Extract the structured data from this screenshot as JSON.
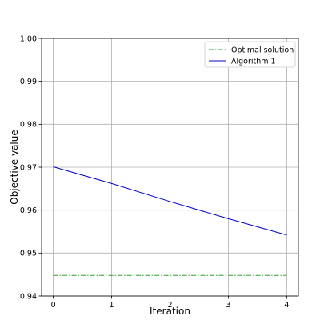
{
  "chart_data": {
    "type": "line",
    "xlabel": "Iteration",
    "ylabel": "Objective value",
    "xlim": [
      -0.2,
      4.2
    ],
    "ylim": [
      0.94,
      1.0
    ],
    "xticks": [
      0,
      1,
      2,
      3,
      4
    ],
    "yticks": [
      0.94,
      0.95,
      0.96,
      0.97,
      0.98,
      0.99,
      1.0
    ],
    "xtick_labels": [
      "0",
      "1",
      "2",
      "3",
      "4"
    ],
    "ytick_labels": [
      "0.94",
      "0.95",
      "0.96",
      "0.97",
      "0.98",
      "0.99",
      "1.00"
    ],
    "grid": true,
    "legend_position": "top-right",
    "series": [
      {
        "name": "Optimal solution",
        "color": "#2ca02c",
        "style": "dashdot",
        "x": [
          0,
          1,
          2,
          3,
          4
        ],
        "y": [
          0.9448,
          0.9448,
          0.9448,
          0.9448,
          0.9448
        ]
      },
      {
        "name": "Algorithm 1",
        "color": "#0000cc",
        "style": "solid",
        "x": [
          0,
          1,
          2,
          3,
          4
        ],
        "y": [
          0.9701,
          0.9662,
          0.962,
          0.958,
          0.9542
        ]
      }
    ]
  }
}
